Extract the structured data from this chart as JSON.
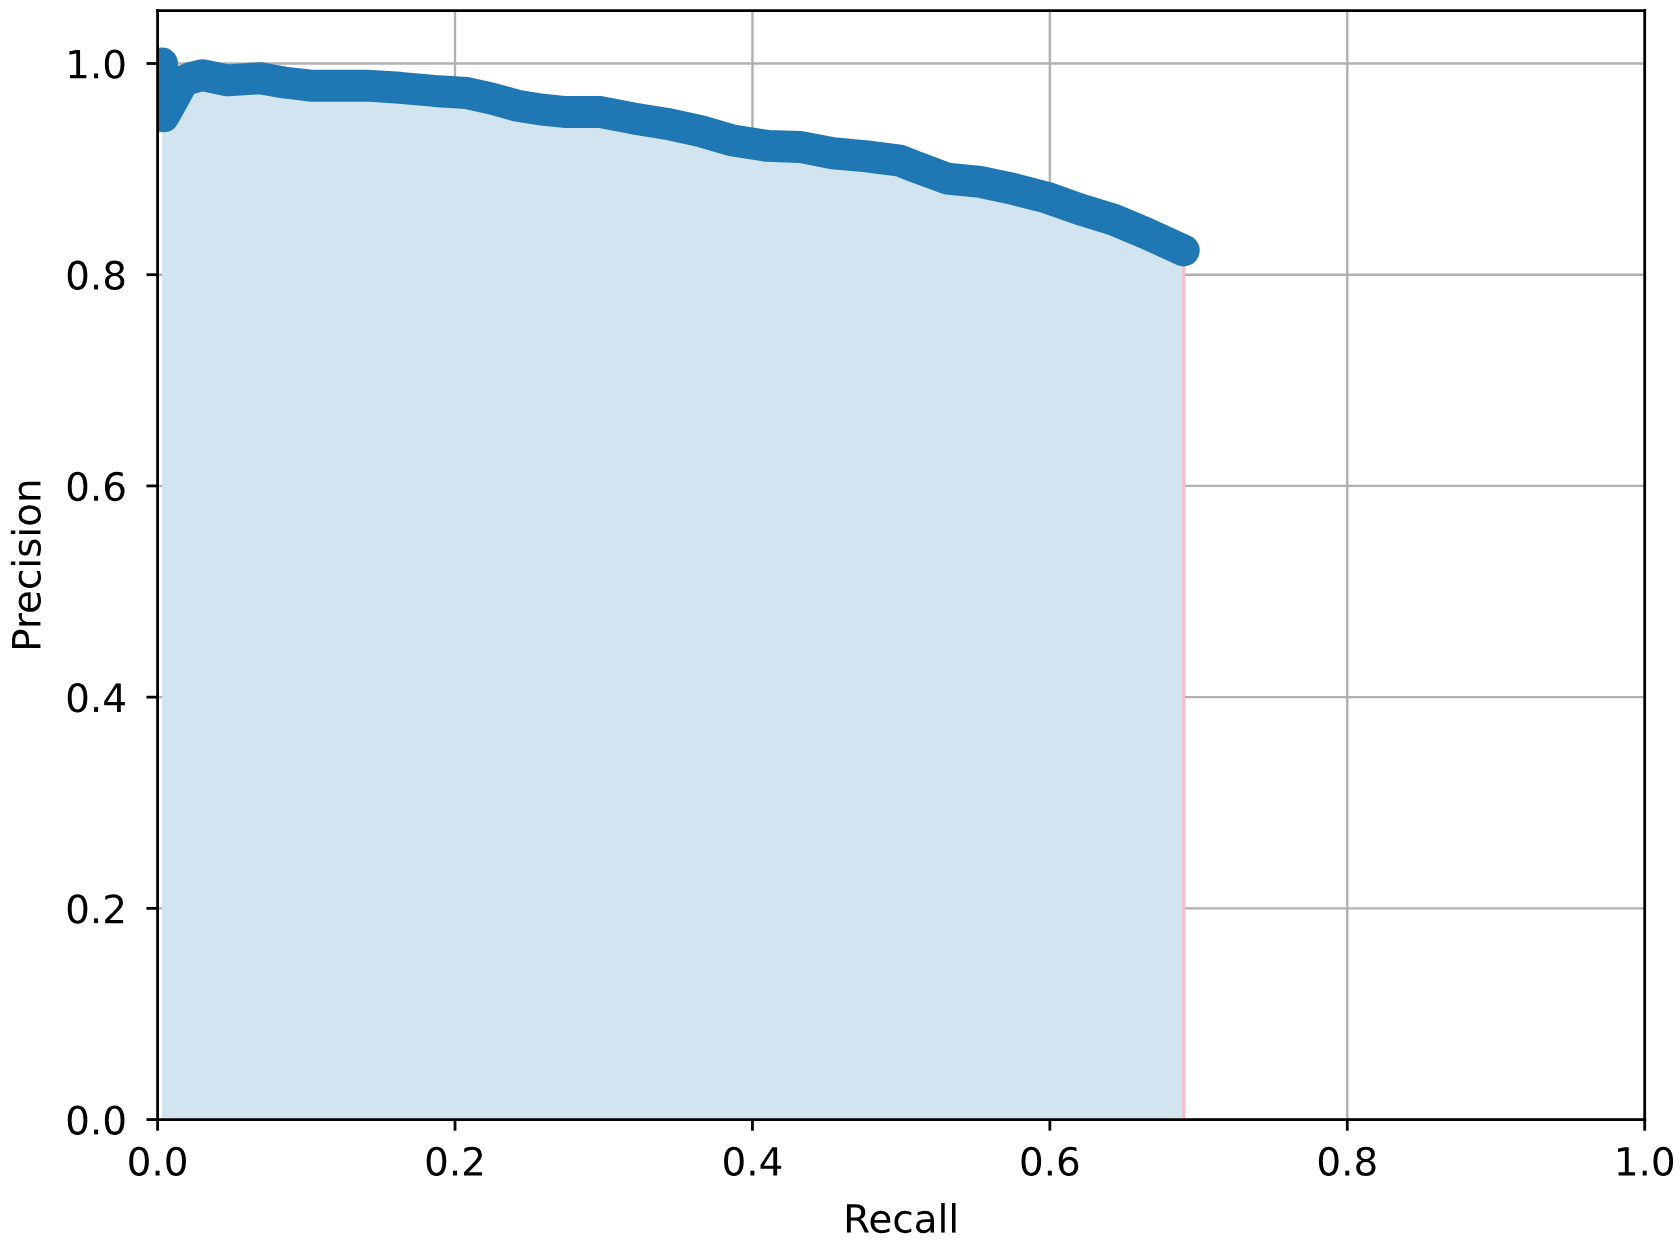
{
  "chart_data": {
    "type": "area",
    "xlabel": "Recall",
    "ylabel": "Precision",
    "series": [
      {
        "color": "#1f77b4",
        "x": [
          0.003,
          0.004,
          0.01,
          0.017,
          0.022,
          0.03,
          0.047,
          0.069,
          0.085,
          0.103,
          0.123,
          0.141,
          0.163,
          0.186,
          0.208,
          0.224,
          0.242,
          0.26,
          0.275,
          0.298,
          0.32,
          0.342,
          0.365,
          0.387,
          0.41,
          0.432,
          0.454,
          0.477,
          0.499,
          0.508,
          0.531,
          0.553,
          0.576,
          0.598,
          0.62,
          0.643,
          0.665,
          0.69
        ],
        "values": [
          1.0,
          0.95,
          0.965,
          0.983,
          0.986,
          0.989,
          0.984,
          0.986,
          0.982,
          0.979,
          0.979,
          0.979,
          0.977,
          0.974,
          0.972,
          0.967,
          0.96,
          0.956,
          0.954,
          0.954,
          0.948,
          0.943,
          0.936,
          0.927,
          0.922,
          0.921,
          0.915,
          0.912,
          0.908,
          0.903,
          0.891,
          0.888,
          0.881,
          0.873,
          0.862,
          0.852,
          0.839,
          0.823
        ]
      },
      {
        "type": "line",
        "color": "#f7bcc5",
        "x": [
          0.69,
          0.69
        ],
        "values": [
          0,
          0.81
        ]
      }
    ],
    "xlim": [
      0,
      1.0
    ],
    "ylim": [
      0,
      1.05
    ],
    "xticks": [
      {
        "value": 0,
        "label": "0.0"
      },
      0.2,
      0.4,
      0.6,
      0.8,
      {
        "value": 1,
        "label": "1.0"
      }
    ],
    "yticks": [
      {
        "value": 0,
        "label": "0.0"
      },
      0.2,
      0.4,
      0.6,
      0.8,
      {
        "value": 1,
        "label": "1.0"
      }
    ],
    "grid": true
  }
}
